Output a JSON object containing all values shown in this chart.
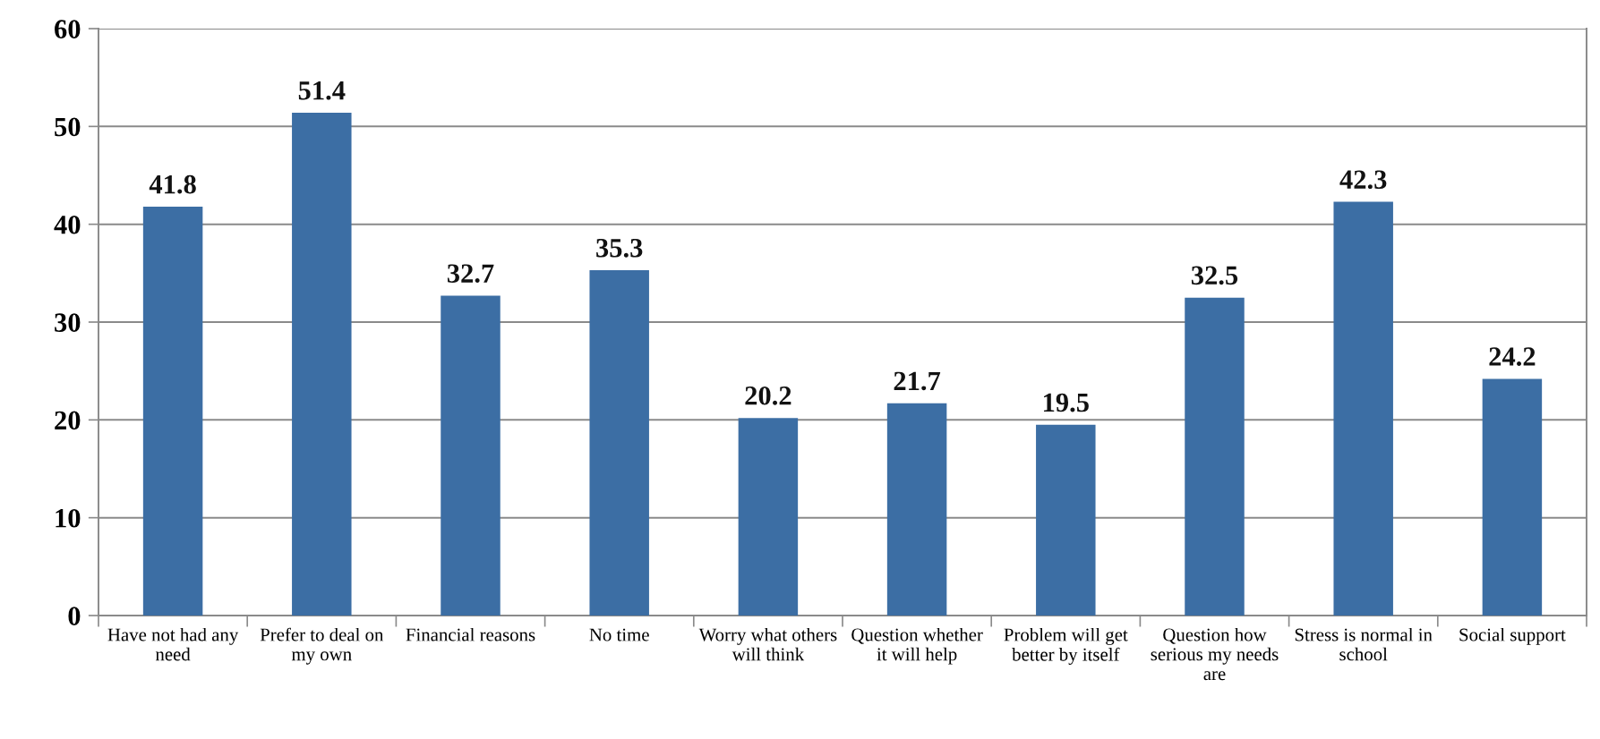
{
  "chart_data": {
    "type": "bar",
    "categories": [
      "Have not had any need",
      "Prefer to deal on my own",
      "Financial reasons",
      "No time",
      "Worry what others will think",
      "Question whether it will help",
      "Problem will get better by itself",
      "Question how serious my needs are",
      "Stress is normal in school",
      "Social support"
    ],
    "values": [
      41.8,
      51.4,
      32.7,
      35.3,
      20.2,
      21.7,
      19.5,
      32.5,
      42.3,
      24.2
    ],
    "color": "#3c6ea4",
    "ylim": [
      0,
      60
    ],
    "yticks": [
      0,
      10,
      20,
      30,
      40,
      50,
      60
    ],
    "grid": "y",
    "data_labels": true
  }
}
